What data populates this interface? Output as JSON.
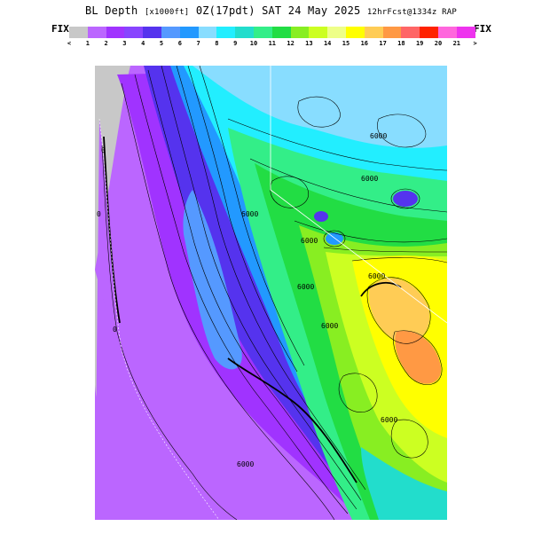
{
  "header": {
    "title_main": "BL Depth",
    "title_units": "[x1000ft]",
    "title_time": "0Z(17pdt) SAT 24 May 2025",
    "title_run": "12hrFcst@1334z RAP",
    "fix_left": "FIX",
    "fix_right": "FIX"
  },
  "color_scale": {
    "colors": [
      "#c8c8c8",
      "#bb66ff",
      "#a033ff",
      "#8844ff",
      "#5533ee",
      "#5599ff",
      "#2299ff",
      "#88ddff",
      "#22eeff",
      "#22ddcc",
      "#33ee88",
      "#22dd44",
      "#88ee22",
      "#ccff22",
      "#eeff88",
      "#ffff00",
      "#ffcc55",
      "#ff9944",
      "#ff6666",
      "#ff2200",
      "#ff66dd",
      "#ee33ee"
    ],
    "tick_labels": [
      "<",
      "1",
      "2",
      "3",
      "4",
      "5",
      "6",
      "7",
      "8",
      "9",
      "10",
      "11",
      "12",
      "13",
      "14",
      "15",
      "16",
      "17",
      "18",
      "19",
      "20",
      "21",
      ">"
    ]
  },
  "map": {
    "contour_labels": [
      "0",
      "0",
      "0",
      "6000",
      "6000",
      "6000",
      "6000",
      "6000",
      "6000",
      "6000",
      "6000",
      "6000"
    ]
  }
}
